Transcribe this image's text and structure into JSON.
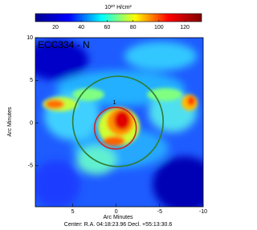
{
  "chart_data": {
    "type": "image",
    "title": "ECC334 - N",
    "colorbar_label": "10²⁰ H/cm²",
    "clim": [
      4.5,
      133
    ],
    "cticks": [
      20,
      40,
      60,
      80,
      100,
      120
    ],
    "colormap": [
      "#00008f",
      "#0000ff",
      "#00ffff",
      "#ffff00",
      "#ff0000",
      "#800000"
    ],
    "xlabel": "Arc Minutes",
    "ylabel": "Arc Minutes",
    "xlim": [
      9.3,
      -10
    ],
    "ylim": [
      -9.8,
      10
    ],
    "xticks": [
      5,
      0,
      -5,
      -10
    ],
    "yticks": [
      10,
      5,
      0,
      -5
    ],
    "footer": "Center: R.A. 04:18:23.96  Decl. +55:13:30.6",
    "regions": [
      {
        "x": -0.2,
        "y": 0.2,
        "r": 5.2,
        "color": "#2e7d32"
      },
      {
        "label": "1",
        "x": 0.1,
        "y": -0.6,
        "r": 2.4,
        "color": "#c62828"
      }
    ]
  }
}
